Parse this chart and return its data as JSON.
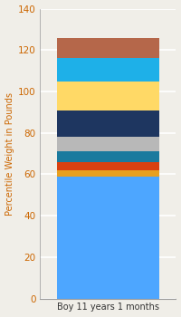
{
  "category": "Boy 11 years 1 months",
  "segments": [
    {
      "value": 59,
      "color": "#4DA6FF"
    },
    {
      "value": 3,
      "color": "#E8A020"
    },
    {
      "value": 4,
      "color": "#D94010"
    },
    {
      "value": 5,
      "color": "#1A7A9E"
    },
    {
      "value": 7,
      "color": "#B8B8B8"
    },
    {
      "value": 13,
      "color": "#1E3660"
    },
    {
      "value": 14,
      "color": "#FFD966"
    },
    {
      "value": 11,
      "color": "#1EB0E8"
    },
    {
      "value": 10,
      "color": "#B5674A"
    }
  ],
  "ylabel": "Percentile Weight in Pounds",
  "ylim": [
    0,
    140
  ],
  "yticks": [
    0,
    20,
    40,
    60,
    80,
    100,
    120,
    140
  ],
  "background_color": "#F0EEE8",
  "grid_color": "#FFFFFF",
  "ylabel_color": "#CC6600",
  "tick_color": "#CC6600",
  "xlabel_color": "#333333",
  "bar_width": 0.75,
  "figsize": [
    2.0,
    3.5
  ],
  "dpi": 100
}
